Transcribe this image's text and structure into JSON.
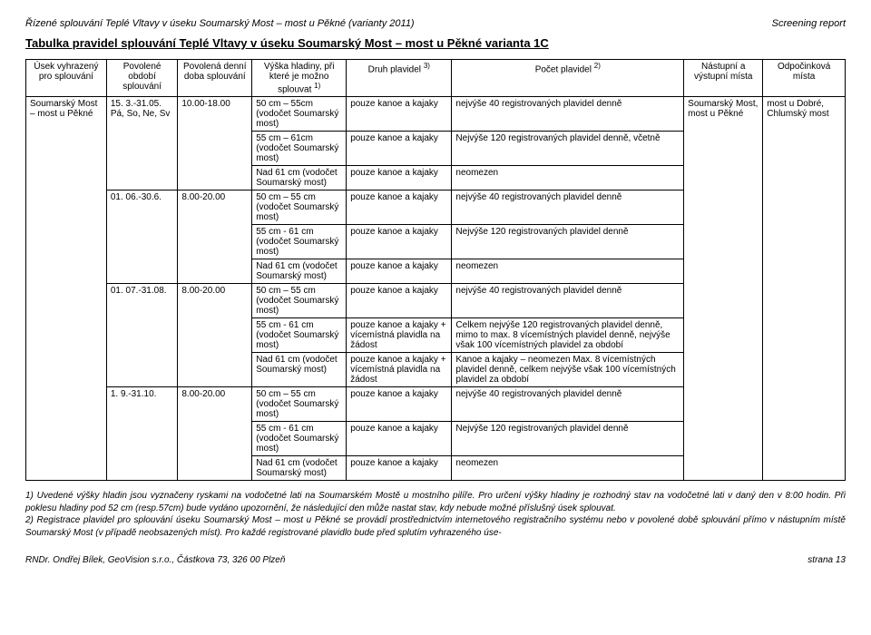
{
  "header": {
    "left": "Řízené splouvání Teplé Vltavy v úseku Soumarský Most – most u Pěkné (varianty 2011)",
    "right": "Screening report"
  },
  "title": "Tabulka pravidel splouvání Teplé Vltavy v úseku Soumarský Most – most u Pěkné  varianta 1C",
  "columns": [
    "Úsek vyhrazený pro splouvání",
    "Povolené období splouvání",
    "Povolená denní doba splouvání",
    "Výška hladiny, při které je možno splouvat ",
    "Druh plavidel ",
    "Počet plavidel ",
    "Nástupní a výstupní místa",
    "Odpočinková místa"
  ],
  "sup": {
    "c4": "1)",
    "c5": "3)",
    "c6": "2)"
  },
  "span": {
    "usek": "Soumarský Most – most u Pěkné",
    "mista": "Soumarský Most, most u Pěkné",
    "odpocinek": "most u Dobré, Chlumský most"
  },
  "rows": [
    {
      "obdobi": "15. 3.-31.05. Pá, So, Ne, Sv",
      "doba": "10.00-18.00",
      "sub": [
        {
          "vyska": "50 cm – 55cm (vodočet Soumarský most)",
          "druh": "pouze kanoe a kajaky",
          "pocet": "nejvýše 40 registrovaných plavidel denně"
        },
        {
          "vyska": "55 cm – 61cm (vodočet Soumarský most)",
          "druh": "pouze kanoe a kajaky",
          "pocet": "Nejvýše 120 registrovaných plavidel denně, včetně"
        },
        {
          "vyska": "Nad 61 cm (vodočet Soumarský most)",
          "druh": "pouze kanoe a kajaky",
          "pocet": "neomezen"
        }
      ]
    },
    {
      "obdobi": "01. 06.-30.6.",
      "doba": "8.00-20.00",
      "sub": [
        {
          "vyska": "50 cm – 55 cm (vodočet Soumarský most)",
          "druh": "pouze kanoe a kajaky",
          "pocet": "nejvýše 40 registrovaných plavidel denně"
        },
        {
          "vyska": "55 cm - 61 cm (vodočet Soumarský most)",
          "druh": "pouze kanoe a kajaky",
          "pocet": "Nejvýše 120 registrovaných plavidel denně"
        },
        {
          "vyska": "Nad 61 cm (vodočet Soumarský most)",
          "druh": "pouze kanoe a kajaky",
          "pocet": "neomezen"
        }
      ]
    },
    {
      "obdobi": "01. 07.-31.08.",
      "doba": "8.00-20.00",
      "sub": [
        {
          "vyska": "50 cm – 55 cm (vodočet Soumarský most)",
          "druh": "pouze kanoe a kajaky",
          "pocet": "nejvýše 40 registrovaných plavidel denně"
        },
        {
          "vyska": "55 cm - 61 cm (vodočet Soumarský most)",
          "druh": "pouze kanoe a kajaky + vícemístná plavidla na žádost",
          "pocet": "Celkem nejvýše 120 registrovaných plavidel denně, mimo to max. 8 vícemístných plavidel denně, nejvýše však 100 vícemístných plavidel za období"
        },
        {
          "vyska": "Nad 61 cm (vodočet Soumarský most)",
          "druh": "pouze kanoe a kajaky + vícemístná plavidla na žádost",
          "pocet": "Kanoe a kajaky – neomezen Max. 8 vícemístných plavidel denně, celkem nejvýše však 100 vícemístných plavidel za období"
        }
      ]
    },
    {
      "obdobi": "1. 9.-31.10.",
      "doba": "8.00-20.00",
      "sub": [
        {
          "vyska": "50 cm – 55 cm (vodočet Soumarský most)",
          "druh": "pouze kanoe a kajaky",
          "pocet": "nejvýše 40 registrovaných plavidel denně"
        },
        {
          "vyska": "55 cm - 61 cm (vodočet Soumarský most)",
          "druh": "pouze kanoe a kajaky",
          "pocet": "Nejvýše 120 registrovaných plavidel denně"
        },
        {
          "vyska": "Nad 61 cm (vodočet Soumarský most)",
          "druh": "pouze kanoe a kajaky",
          "pocet": "neomezen"
        }
      ]
    }
  ],
  "footnotes": {
    "n1": "1) Uvedené výšky hladin jsou vyznačeny ryskami na vodočetné lati na Soumarském Mostě u mostního pilíře. Pro určení výšky hladiny je rozhodný stav na vodočetné lati v daný den v 8:00 hodin. Při poklesu hladiny pod 52 cm (resp.57cm) bude vydáno upozornění, že následující den může nastat stav, kdy nebude možné příslušný úsek splouvat.",
    "n2": "2) Registrace plavidel pro splouvání úseku Soumarský Most – most u Pěkné se provádí prostřednictvím internetového registračního systému nebo v povolené době splouvání přímo v nástupním místě Soumarský Most (v případě neobsazených míst). Pro každé registrované plavidlo bude před splutím vyhrazeného úse-"
  },
  "footer": {
    "left": "RNDr. Ondřej Bílek, GeoVision s.r.o., Částkova 73, 326 00 Plzeň",
    "right": "strana   13"
  }
}
